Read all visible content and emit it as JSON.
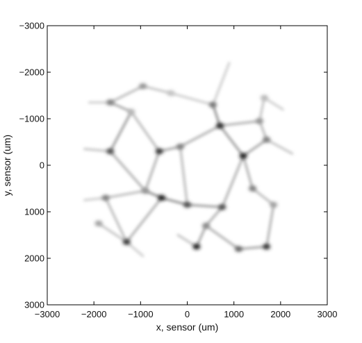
{
  "chart_data": {
    "type": "heatmap",
    "title": "",
    "xlabel": "x, sensor (um)",
    "ylabel": "y, sensor (um)",
    "xlim": [
      -3000,
      3000
    ],
    "ylim": [
      -3000,
      3000
    ],
    "y_axis_reversed": true,
    "grid": false,
    "colormap": "gray (white = 0, black = max)",
    "x_ticks": [
      "−3000",
      "−2000",
      "−1000",
      "0",
      "1000",
      "2000",
      "3000"
    ],
    "y_ticks": [
      "−3000",
      "−2000",
      "−1000",
      "0",
      "1000",
      "2000",
      "3000"
    ],
    "x_tick_values": [
      -3000,
      -2000,
      -1000,
      0,
      1000,
      2000,
      3000
    ],
    "y_tick_values": [
      -3000,
      -2000,
      -1000,
      0,
      1000,
      2000,
      3000
    ],
    "nodes": [
      {
        "x": -1650,
        "y": -1350,
        "v": 0.55
      },
      {
        "x": -1200,
        "y": -1150,
        "v": 0.3
      },
      {
        "x": -950,
        "y": -1700,
        "v": 0.45
      },
      {
        "x": -350,
        "y": -1550,
        "v": 0.25
      },
      {
        "x": 550,
        "y": -1300,
        "v": 0.6
      },
      {
        "x": 700,
        "y": -850,
        "v": 0.9
      },
      {
        "x": 1650,
        "y": -1450,
        "v": 0.3
      },
      {
        "x": 1550,
        "y": -950,
        "v": 0.45
      },
      {
        "x": 1700,
        "y": -550,
        "v": 0.55
      },
      {
        "x": -1650,
        "y": -300,
        "v": 0.75
      },
      {
        "x": -600,
        "y": -300,
        "v": 0.85
      },
      {
        "x": -150,
        "y": -400,
        "v": 0.55
      },
      {
        "x": 1200,
        "y": -200,
        "v": 0.95
      },
      {
        "x": -550,
        "y": 700,
        "v": 0.95
      },
      {
        "x": -900,
        "y": 550,
        "v": 0.45
      },
      {
        "x": 0,
        "y": 850,
        "v": 0.75
      },
      {
        "x": 750,
        "y": 900,
        "v": 0.75
      },
      {
        "x": -1750,
        "y": 700,
        "v": 0.55
      },
      {
        "x": -1300,
        "y": 1650,
        "v": 0.85
      },
      {
        "x": 200,
        "y": 1750,
        "v": 0.95
      },
      {
        "x": 1100,
        "y": 1800,
        "v": 0.65
      },
      {
        "x": 1700,
        "y": 1750,
        "v": 0.85
      },
      {
        "x": 1400,
        "y": 500,
        "v": 0.55
      },
      {
        "x": 1850,
        "y": 850,
        "v": 0.4
      },
      {
        "x": -1900,
        "y": 1250,
        "v": 0.4
      },
      {
        "x": 400,
        "y": 1300,
        "v": 0.5
      }
    ],
    "edges": [
      {
        "x1": -1650,
        "y1": -1350,
        "x2": -1200,
        "y2": -1150,
        "v": 0.45
      },
      {
        "x1": -1650,
        "y1": -1350,
        "x2": -950,
        "y2": -1700,
        "v": 0.35
      },
      {
        "x1": -950,
        "y1": -1700,
        "x2": -350,
        "y2": -1550,
        "v": 0.3
      },
      {
        "x1": -350,
        "y1": -1550,
        "x2": 550,
        "y2": -1300,
        "v": 0.25
      },
      {
        "x1": 550,
        "y1": -1300,
        "x2": 700,
        "y2": -850,
        "v": 0.55
      },
      {
        "x1": 700,
        "y1": -850,
        "x2": 1550,
        "y2": -950,
        "v": 0.4
      },
      {
        "x1": 1550,
        "y1": -950,
        "x2": 1650,
        "y2": -1450,
        "v": 0.3
      },
      {
        "x1": 1550,
        "y1": -950,
        "x2": 1700,
        "y2": -550,
        "v": 0.35
      },
      {
        "x1": 1700,
        "y1": -550,
        "x2": 1200,
        "y2": -200,
        "v": 0.45
      },
      {
        "x1": 700,
        "y1": -850,
        "x2": 1200,
        "y2": -200,
        "v": 0.5
      },
      {
        "x1": 700,
        "y1": -850,
        "x2": -150,
        "y2": -400,
        "v": 0.4
      },
      {
        "x1": -1200,
        "y1": -1150,
        "x2": -1650,
        "y2": -300,
        "v": 0.5
      },
      {
        "x1": -1200,
        "y1": -1150,
        "x2": -600,
        "y2": -300,
        "v": 0.35
      },
      {
        "x1": -1650,
        "y1": -300,
        "x2": -900,
        "y2": 550,
        "v": 0.4
      },
      {
        "x1": -600,
        "y1": -300,
        "x2": -150,
        "y2": -400,
        "v": 0.45
      },
      {
        "x1": -600,
        "y1": -300,
        "x2": -900,
        "y2": 550,
        "v": 0.4
      },
      {
        "x1": -150,
        "y1": -400,
        "x2": 0,
        "y2": 850,
        "v": 0.35
      },
      {
        "x1": -900,
        "y1": 550,
        "x2": -550,
        "y2": 700,
        "v": 0.55
      },
      {
        "x1": -550,
        "y1": 700,
        "x2": 0,
        "y2": 850,
        "v": 0.55
      },
      {
        "x1": 0,
        "y1": 850,
        "x2": 750,
        "y2": 900,
        "v": 0.5
      },
      {
        "x1": 750,
        "y1": 900,
        "x2": 1200,
        "y2": -200,
        "v": 0.4
      },
      {
        "x1": 1200,
        "y1": -200,
        "x2": 1400,
        "y2": 500,
        "v": 0.4
      },
      {
        "x1": 1400,
        "y1": 500,
        "x2": 1850,
        "y2": 850,
        "v": 0.35
      },
      {
        "x1": 1850,
        "y1": 850,
        "x2": 1700,
        "y2": 1750,
        "v": 0.4
      },
      {
        "x1": 1700,
        "y1": 1750,
        "x2": 1100,
        "y2": 1800,
        "v": 0.45
      },
      {
        "x1": 1100,
        "y1": 1800,
        "x2": 400,
        "y2": 1300,
        "v": 0.4
      },
      {
        "x1": 400,
        "y1": 1300,
        "x2": 750,
        "y2": 900,
        "v": 0.4
      },
      {
        "x1": 400,
        "y1": 1300,
        "x2": 200,
        "y2": 1750,
        "v": 0.45
      },
      {
        "x1": -550,
        "y1": 700,
        "x2": -1300,
        "y2": 1650,
        "v": 0.4
      },
      {
        "x1": -1750,
        "y1": 700,
        "x2": -1300,
        "y2": 1650,
        "v": 0.35
      },
      {
        "x1": -1750,
        "y1": 700,
        "x2": -900,
        "y2": 550,
        "v": 0.35
      },
      {
        "x1": -1900,
        "y1": 1250,
        "x2": -1300,
        "y2": 1650,
        "v": 0.3
      },
      {
        "x1": -1300,
        "y1": 1650,
        "x2": -950,
        "y2": 1950,
        "v": 0.25
      },
      {
        "x1": 200,
        "y1": 1750,
        "x2": -200,
        "y2": 1500,
        "v": 0.3
      },
      {
        "x1": -1650,
        "y1": -1350,
        "x2": -2100,
        "y2": -1350,
        "v": 0.25
      },
      {
        "x1": 550,
        "y1": -1300,
        "x2": 900,
        "y2": -2200,
        "v": 0.25
      },
      {
        "x1": 1650,
        "y1": -1450,
        "x2": 2050,
        "y2": -1200,
        "v": 0.25
      },
      {
        "x1": 1700,
        "y1": -550,
        "x2": 2250,
        "y2": -250,
        "v": 0.3
      },
      {
        "x1": -1650,
        "y1": -300,
        "x2": -2200,
        "y2": -350,
        "v": 0.3
      },
      {
        "x1": -1750,
        "y1": 700,
        "x2": -2200,
        "y2": 750,
        "v": 0.25
      }
    ]
  }
}
